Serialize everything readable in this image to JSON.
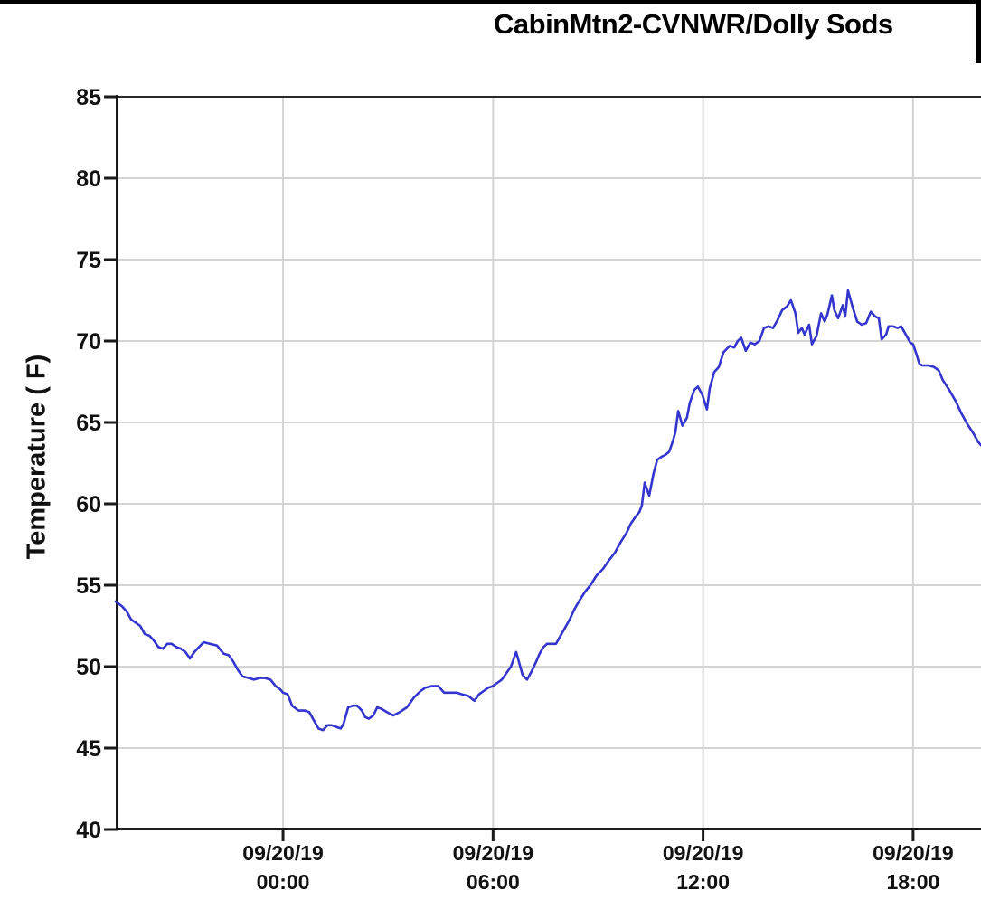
{
  "header": {
    "title": "CabinMtn2-CVNWR/Dolly Sods"
  },
  "chart_data": {
    "type": "line",
    "title": "CabinMtn2-CVNWR/Dolly Sods",
    "xlabel": "",
    "ylabel": "Temperature ( F)",
    "ylim": [
      40,
      85
    ],
    "yticks": [
      40,
      45,
      50,
      55,
      60,
      65,
      70,
      75,
      80,
      85
    ],
    "xlim_hours": [
      -4.78,
      19.94
    ],
    "xticks": [
      {
        "hour": 0,
        "date": "09/20/19",
        "time": "00:00"
      },
      {
        "hour": 6,
        "date": "09/20/19",
        "time": "06:00"
      },
      {
        "hour": 12,
        "date": "09/20/19",
        "time": "12:00"
      },
      {
        "hour": 18,
        "date": "09/20/19",
        "time": "18:00"
      }
    ],
    "grid": true,
    "legend_position": "none",
    "colors": {
      "line": "#3434cf",
      "grid": "#d4d4d4",
      "axis": "#1a1a1a",
      "tick_text": "#111111",
      "background": "#ffffff",
      "top_bar": "#000000"
    },
    "series": [
      {
        "name": "Temperature (F)",
        "color": "#3434cf",
        "points_hour_tempF": [
          [
            -4.78,
            54.0
          ],
          [
            -4.6,
            53.7
          ],
          [
            -4.47,
            53.4
          ],
          [
            -4.34,
            52.9
          ],
          [
            -4.21,
            52.7
          ],
          [
            -4.08,
            52.5
          ],
          [
            -3.95,
            52.0
          ],
          [
            -3.82,
            51.9
          ],
          [
            -3.69,
            51.6
          ],
          [
            -3.56,
            51.2
          ],
          [
            -3.43,
            51.1
          ],
          [
            -3.31,
            51.4
          ],
          [
            -3.18,
            51.4
          ],
          [
            -3.05,
            51.2
          ],
          [
            -2.92,
            51.1
          ],
          [
            -2.79,
            50.9
          ],
          [
            -2.66,
            50.5
          ],
          [
            -2.53,
            50.9
          ],
          [
            -2.4,
            51.2
          ],
          [
            -2.27,
            51.5
          ],
          [
            -2.09,
            51.4
          ],
          [
            -1.89,
            51.3
          ],
          [
            -1.7,
            50.8
          ],
          [
            -1.55,
            50.7
          ],
          [
            -1.42,
            50.3
          ],
          [
            -1.29,
            49.8
          ],
          [
            -1.16,
            49.4
          ],
          [
            -0.98,
            49.3
          ],
          [
            -0.83,
            49.2
          ],
          [
            -0.67,
            49.3
          ],
          [
            -0.52,
            49.3
          ],
          [
            -0.36,
            49.2
          ],
          [
            -0.21,
            48.8
          ],
          [
            -0.08,
            48.6
          ],
          [
            0.0,
            48.4
          ],
          [
            0.13,
            48.3
          ],
          [
            0.26,
            47.6
          ],
          [
            0.44,
            47.3
          ],
          [
            0.62,
            47.3
          ],
          [
            0.75,
            47.2
          ],
          [
            0.88,
            46.7
          ],
          [
            1.01,
            46.2
          ],
          [
            1.14,
            46.1
          ],
          [
            1.27,
            46.4
          ],
          [
            1.39,
            46.4
          ],
          [
            1.52,
            46.3
          ],
          [
            1.65,
            46.2
          ],
          [
            1.73,
            46.5
          ],
          [
            1.86,
            47.5
          ],
          [
            1.99,
            47.6
          ],
          [
            2.12,
            47.6
          ],
          [
            2.25,
            47.3
          ],
          [
            2.35,
            46.9
          ],
          [
            2.45,
            46.8
          ],
          [
            2.58,
            47.0
          ],
          [
            2.69,
            47.5
          ],
          [
            2.82,
            47.4
          ],
          [
            2.97,
            47.2
          ],
          [
            3.15,
            47.0
          ],
          [
            3.33,
            47.2
          ],
          [
            3.54,
            47.5
          ],
          [
            3.74,
            48.1
          ],
          [
            3.93,
            48.5
          ],
          [
            4.06,
            48.7
          ],
          [
            4.24,
            48.8
          ],
          [
            4.44,
            48.8
          ],
          [
            4.6,
            48.4
          ],
          [
            4.78,
            48.4
          ],
          [
            4.96,
            48.4
          ],
          [
            5.11,
            48.3
          ],
          [
            5.29,
            48.2
          ],
          [
            5.47,
            47.9
          ],
          [
            5.6,
            48.3
          ],
          [
            5.73,
            48.5
          ],
          [
            5.86,
            48.7
          ],
          [
            5.99,
            48.8
          ],
          [
            6.12,
            49.0
          ],
          [
            6.25,
            49.2
          ],
          [
            6.38,
            49.6
          ],
          [
            6.51,
            50.0
          ],
          [
            6.66,
            50.9
          ],
          [
            6.84,
            49.5
          ],
          [
            6.97,
            49.2
          ],
          [
            7.1,
            49.7
          ],
          [
            7.23,
            50.3
          ],
          [
            7.33,
            50.8
          ],
          [
            7.44,
            51.2
          ],
          [
            7.54,
            51.4
          ],
          [
            7.67,
            51.4
          ],
          [
            7.8,
            51.4
          ],
          [
            7.93,
            51.9
          ],
          [
            8.06,
            52.4
          ],
          [
            8.19,
            52.9
          ],
          [
            8.32,
            53.5
          ],
          [
            8.45,
            54.0
          ],
          [
            8.63,
            54.6
          ],
          [
            8.78,
            55.0
          ],
          [
            8.96,
            55.6
          ],
          [
            9.14,
            56.0
          ],
          [
            9.3,
            56.5
          ],
          [
            9.48,
            57.0
          ],
          [
            9.66,
            57.7
          ],
          [
            9.81,
            58.2
          ],
          [
            9.94,
            58.8
          ],
          [
            10.07,
            59.2
          ],
          [
            10.18,
            59.5
          ],
          [
            10.25,
            59.9
          ],
          [
            10.33,
            61.3
          ],
          [
            10.46,
            60.5
          ],
          [
            10.59,
            61.9
          ],
          [
            10.69,
            62.7
          ],
          [
            10.82,
            62.9
          ],
          [
            10.92,
            63.0
          ],
          [
            11.03,
            63.2
          ],
          [
            11.13,
            63.8
          ],
          [
            11.21,
            64.4
          ],
          [
            11.29,
            65.7
          ],
          [
            11.41,
            64.8
          ],
          [
            11.54,
            65.3
          ],
          [
            11.62,
            66.2
          ],
          [
            11.75,
            67.0
          ],
          [
            11.85,
            67.2
          ],
          [
            11.98,
            66.7
          ],
          [
            12.11,
            65.8
          ],
          [
            12.19,
            67.1
          ],
          [
            12.32,
            68.1
          ],
          [
            12.45,
            68.4
          ],
          [
            12.58,
            69.3
          ],
          [
            12.76,
            69.7
          ],
          [
            12.89,
            69.6
          ],
          [
            12.99,
            70.0
          ],
          [
            13.09,
            70.2
          ],
          [
            13.22,
            69.4
          ],
          [
            13.35,
            69.9
          ],
          [
            13.48,
            69.8
          ],
          [
            13.61,
            70.0
          ],
          [
            13.74,
            70.8
          ],
          [
            13.87,
            70.9
          ],
          [
            14.0,
            70.8
          ],
          [
            14.13,
            71.3
          ],
          [
            14.26,
            71.9
          ],
          [
            14.39,
            72.1
          ],
          [
            14.51,
            72.5
          ],
          [
            14.64,
            71.7
          ],
          [
            14.72,
            70.5
          ],
          [
            14.82,
            70.8
          ],
          [
            14.9,
            70.4
          ],
          [
            15.03,
            71.0
          ],
          [
            15.11,
            69.8
          ],
          [
            15.24,
            70.3
          ],
          [
            15.37,
            71.7
          ],
          [
            15.47,
            71.2
          ],
          [
            15.55,
            71.6
          ],
          [
            15.68,
            72.8
          ],
          [
            15.75,
            71.9
          ],
          [
            15.86,
            71.4
          ],
          [
            15.99,
            72.2
          ],
          [
            16.06,
            71.5
          ],
          [
            16.14,
            73.1
          ],
          [
            16.27,
            72.1
          ],
          [
            16.4,
            71.2
          ],
          [
            16.53,
            71.0
          ],
          [
            16.66,
            71.1
          ],
          [
            16.79,
            71.8
          ],
          [
            16.92,
            71.5
          ],
          [
            17.02,
            71.4
          ],
          [
            17.1,
            70.1
          ],
          [
            17.23,
            70.4
          ],
          [
            17.3,
            70.9
          ],
          [
            17.43,
            70.9
          ],
          [
            17.56,
            70.8
          ],
          [
            17.66,
            70.9
          ],
          [
            17.79,
            70.4
          ],
          [
            17.92,
            69.9
          ],
          [
            18.0,
            69.8
          ],
          [
            18.08,
            69.3
          ],
          [
            18.18,
            68.6
          ],
          [
            18.26,
            68.5
          ],
          [
            18.44,
            68.5
          ],
          [
            18.6,
            68.4
          ],
          [
            18.73,
            68.2
          ],
          [
            18.85,
            67.6
          ],
          [
            19.03,
            67.0
          ],
          [
            19.22,
            66.3
          ],
          [
            19.37,
            65.6
          ],
          [
            19.55,
            64.9
          ],
          [
            19.73,
            64.3
          ],
          [
            19.86,
            63.8
          ],
          [
            19.94,
            63.6
          ]
        ]
      }
    ]
  }
}
